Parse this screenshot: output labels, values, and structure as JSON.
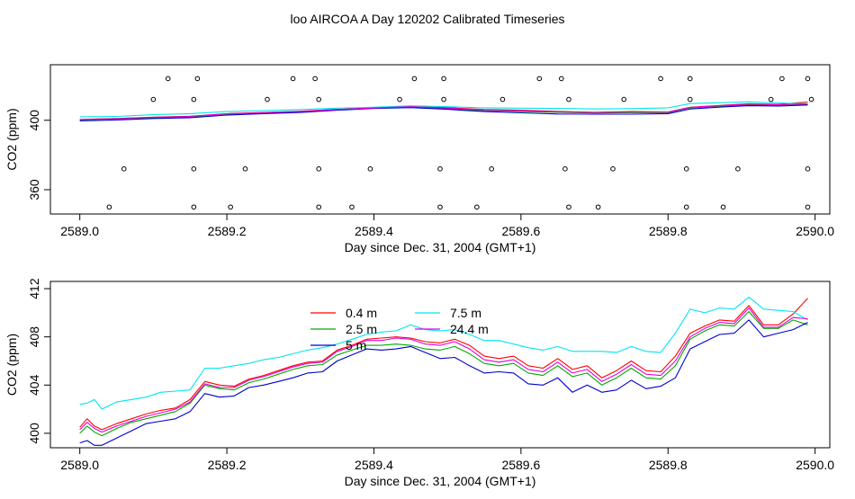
{
  "title": "loo AIRCOA A  Day 120202  Calibrated Timeseries",
  "colors": {
    "0.4 m": "#ff0000",
    "2.5 m": "#00aa00",
    "5 m": "#0000cc",
    "7.5 m": "#00e5ee",
    "24.4 m": "#e000e0",
    "points": "#000000"
  },
  "chart_data": [
    {
      "type": "line",
      "title": "",
      "xlabel": "Day since Dec. 31, 2004 (GMT+1)",
      "ylabel": "CO2 (ppm)",
      "xlim": [
        2588.96,
        2590.02
      ],
      "ylim": [
        346,
        432
      ],
      "xticks": [
        2589.0,
        2589.2,
        2589.4,
        2589.6,
        2589.8,
        2590.0
      ],
      "xtick_labels": [
        "2589.0",
        "2589.2",
        "2589.4",
        "2589.6",
        "2589.8",
        "2590.0"
      ],
      "yticks": [
        360,
        400
      ],
      "ytick_labels": [
        "360",
        "400"
      ],
      "grid": false,
      "legend": "none",
      "x": [
        2589.0,
        2589.05,
        2589.1,
        2589.15,
        2589.2,
        2589.25,
        2589.3,
        2589.35,
        2589.4,
        2589.45,
        2589.5,
        2589.55,
        2589.6,
        2589.65,
        2589.7,
        2589.75,
        2589.8,
        2589.83,
        2589.88,
        2589.91,
        2589.95,
        2589.99
      ],
      "series": [
        {
          "name": "0.4 m",
          "values": [
            400.5,
            401.0,
            401.8,
            402.3,
            403.8,
            404.5,
            405.2,
            406.3,
            407.2,
            407.9,
            407.3,
            406.2,
            405.8,
            405.1,
            404.6,
            405.0,
            404.8,
            407.5,
            408.8,
            409.5,
            409.2,
            410.5
          ]
        },
        {
          "name": "2.5 m",
          "values": [
            400.2,
            400.8,
            401.5,
            402.0,
            403.5,
            404.3,
            405.0,
            406.0,
            407.0,
            407.5,
            406.7,
            405.6,
            405.0,
            404.6,
            404.2,
            404.4,
            404.4,
            407.2,
            408.3,
            408.8,
            408.6,
            409.2
          ]
        },
        {
          "name": "5 m",
          "values": [
            399.6,
            400.2,
            401.0,
            401.5,
            403.0,
            403.8,
            404.5,
            405.8,
            406.8,
            407.3,
            406.3,
            405.0,
            404.3,
            403.6,
            403.5,
            403.5,
            403.8,
            406.5,
            407.8,
            408.4,
            408.2,
            408.8
          ]
        },
        {
          "name": "7.5 m",
          "values": [
            402.0,
            402.2,
            403.2,
            403.8,
            405.0,
            405.6,
            406.2,
            407.0,
            407.5,
            408.3,
            407.8,
            407.2,
            407.0,
            406.8,
            406.5,
            406.7,
            407.2,
            409.6,
            410.2,
            410.6,
            410.0,
            409.5
          ]
        },
        {
          "name": "24.4 m",
          "values": [
            400.4,
            401.0,
            401.7,
            402.2,
            403.7,
            404.4,
            405.1,
            406.2,
            407.1,
            407.8,
            407.0,
            406.0,
            405.4,
            404.9,
            404.5,
            404.8,
            404.7,
            407.4,
            408.6,
            409.2,
            408.9,
            409.4
          ]
        }
      ],
      "points": {
        "x": [
          2589.12,
          2589.16,
          2589.29,
          2589.32,
          2589.455,
          2589.495,
          2589.625,
          2589.655,
          2589.79,
          2589.83,
          2589.955,
          2589.99,
          2589.1,
          2589.155,
          2589.255,
          2589.325,
          2589.435,
          2589.495,
          2589.575,
          2589.665,
          2589.74,
          2589.83,
          2589.94,
          2589.995,
          2589.06,
          2589.155,
          2589.225,
          2589.325,
          2589.395,
          2589.49,
          2589.56,
          2589.66,
          2589.725,
          2589.825,
          2589.895,
          2589.99,
          2589.04,
          2589.155,
          2589.205,
          2589.325,
          2589.37,
          2589.49,
          2589.54,
          2589.665,
          2589.705,
          2589.825,
          2589.875,
          2589.99
        ],
        "y": [
          424,
          424,
          424,
          424,
          424,
          424,
          424,
          424,
          424,
          424,
          424,
          424,
          412,
          412,
          412,
          412,
          412,
          412,
          412,
          412,
          412,
          412,
          412,
          412,
          372,
          372,
          372,
          372,
          372,
          372,
          372,
          372,
          372,
          372,
          372,
          372,
          350,
          350,
          350,
          350,
          350,
          350,
          350,
          350,
          350,
          350,
          350,
          350
        ]
      }
    },
    {
      "type": "line",
      "title": "",
      "xlabel": "Day since Dec. 31, 2004 (GMT+1)",
      "ylabel": "CO2 (ppm)",
      "xlim": [
        2588.96,
        2590.02
      ],
      "ylim": [
        398.8,
        412.6
      ],
      "xticks": [
        2589.0,
        2589.2,
        2589.4,
        2589.6,
        2589.8,
        2590.0
      ],
      "xtick_labels": [
        "2589.0",
        "2589.2",
        "2589.4",
        "2589.6",
        "2589.8",
        "2590.0"
      ],
      "yticks": [
        400,
        404,
        408,
        412
      ],
      "ytick_labels": [
        "400",
        "404",
        "408",
        "412"
      ],
      "grid": false,
      "legend": "top-center",
      "x": [
        2589.0,
        2589.01,
        2589.02,
        2589.03,
        2589.05,
        2589.07,
        2589.09,
        2589.11,
        2589.13,
        2589.15,
        2589.17,
        2589.19,
        2589.21,
        2589.23,
        2589.25,
        2589.27,
        2589.29,
        2589.31,
        2589.33,
        2589.35,
        2589.37,
        2589.39,
        2589.41,
        2589.43,
        2589.45,
        2589.47,
        2589.49,
        2589.51,
        2589.53,
        2589.55,
        2589.57,
        2589.59,
        2589.61,
        2589.63,
        2589.65,
        2589.67,
        2589.69,
        2589.71,
        2589.73,
        2589.75,
        2589.77,
        2589.79,
        2589.81,
        2589.83,
        2589.85,
        2589.87,
        2589.89,
        2589.91,
        2589.93,
        2589.95,
        2589.97,
        2589.99
      ],
      "series": [
        {
          "name": "0.4 m",
          "values": [
            400.5,
            401.2,
            400.6,
            400.3,
            400.8,
            401.2,
            401.6,
            401.9,
            402.1,
            402.8,
            404.3,
            404.0,
            403.9,
            404.5,
            404.8,
            405.2,
            405.6,
            405.9,
            406.0,
            406.9,
            407.3,
            407.8,
            407.9,
            408.0,
            407.9,
            407.6,
            407.5,
            407.8,
            407.3,
            406.4,
            406.2,
            406.4,
            405.6,
            405.4,
            406.2,
            405.3,
            405.6,
            404.6,
            405.2,
            406.0,
            405.2,
            405.1,
            406.4,
            408.3,
            408.9,
            409.4,
            409.3,
            410.6,
            409.0,
            409.0,
            409.9,
            411.2
          ]
        },
        {
          "name": "2.5 m",
          "values": [
            400.0,
            400.6,
            400.1,
            399.8,
            400.4,
            400.9,
            401.2,
            401.5,
            401.8,
            402.5,
            404.0,
            403.7,
            403.6,
            404.2,
            404.5,
            404.9,
            405.3,
            405.6,
            405.7,
            406.5,
            406.9,
            407.3,
            407.3,
            407.4,
            407.3,
            407.0,
            406.9,
            407.2,
            406.6,
            405.8,
            405.6,
            405.8,
            405.0,
            404.8,
            405.6,
            404.7,
            405.0,
            404.0,
            404.6,
            405.4,
            404.6,
            404.5,
            405.6,
            407.8,
            408.5,
            409.0,
            408.9,
            410.1,
            408.7,
            408.7,
            409.4,
            409.0
          ]
        },
        {
          "name": "5 m",
          "values": [
            399.2,
            399.4,
            399.0,
            399.0,
            399.6,
            400.2,
            400.8,
            401.0,
            401.2,
            401.8,
            403.3,
            403.0,
            403.1,
            403.8,
            404.0,
            404.3,
            404.6,
            405.0,
            405.1,
            406.0,
            406.5,
            407.0,
            406.9,
            407.0,
            407.2,
            406.7,
            406.2,
            406.3,
            405.6,
            405.0,
            405.1,
            405.0,
            404.1,
            404.0,
            404.6,
            403.4,
            404.0,
            403.4,
            403.6,
            404.4,
            403.7,
            403.9,
            404.6,
            407.0,
            407.6,
            408.2,
            408.3,
            409.4,
            408.0,
            408.3,
            408.6,
            409.2
          ]
        },
        {
          "name": "7.5 m",
          "values": [
            402.4,
            402.5,
            402.8,
            402.0,
            402.6,
            402.8,
            403.0,
            403.4,
            403.5,
            403.6,
            405.4,
            405.4,
            405.6,
            405.8,
            406.1,
            406.3,
            406.6,
            406.9,
            407.1,
            407.4,
            407.8,
            408.2,
            408.4,
            408.5,
            409.0,
            408.6,
            408.5,
            408.6,
            408.2,
            407.7,
            407.7,
            407.4,
            407.1,
            406.9,
            407.2,
            406.8,
            406.8,
            406.8,
            406.7,
            407.2,
            406.8,
            406.7,
            408.3,
            410.3,
            410.0,
            410.4,
            410.3,
            411.3,
            410.3,
            410.2,
            410.1,
            409.4
          ]
        },
        {
          "name": "24.4 m",
          "values": [
            400.3,
            400.9,
            400.4,
            400.1,
            400.6,
            401.0,
            401.4,
            401.7,
            402.0,
            402.6,
            404.1,
            403.8,
            403.8,
            404.4,
            404.7,
            405.1,
            405.5,
            405.8,
            405.9,
            406.8,
            407.2,
            407.7,
            407.7,
            407.9,
            407.8,
            407.4,
            407.3,
            407.6,
            407.0,
            406.1,
            405.9,
            406.1,
            405.3,
            405.1,
            405.9,
            405.0,
            405.3,
            404.3,
            404.9,
            405.7,
            404.9,
            404.8,
            406.0,
            408.0,
            408.7,
            409.2,
            409.1,
            410.4,
            408.8,
            408.8,
            409.6,
            409.5
          ]
        }
      ]
    }
  ]
}
